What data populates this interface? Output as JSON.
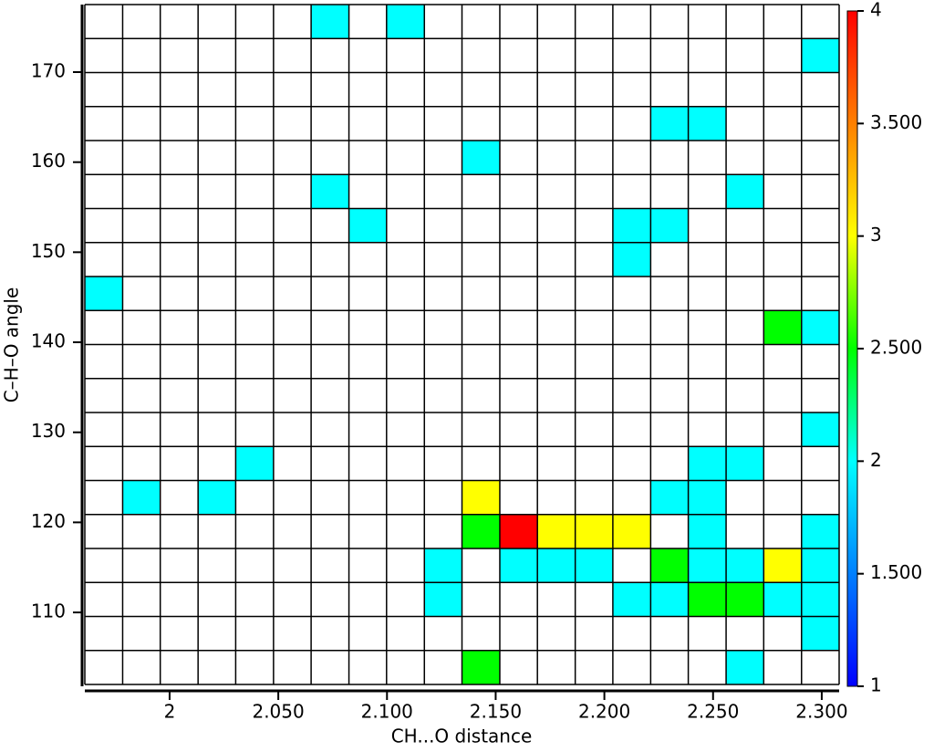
{
  "chart_data": {
    "type": "heatmap",
    "x_label": "CH...O distance",
    "y_label": "C–H–O angle",
    "xlim": [
      1.961,
      2.308
    ],
    "ylim": [
      102,
      177.5
    ],
    "x_bins": [
      1.961,
      1.9784,
      1.9957,
      2.0131,
      2.0304,
      2.0478,
      2.0651,
      2.0825,
      2.0998,
      2.1172,
      2.1345,
      2.1519,
      2.1692,
      2.1866,
      2.2039,
      2.2213,
      2.2386,
      2.256,
      2.2733,
      2.2907,
      2.308
    ],
    "y_bins": [
      102,
      105.775,
      109.55,
      113.325,
      117.1,
      120.875,
      124.65,
      128.425,
      132.2,
      135.975,
      139.75,
      143.525,
      147.3,
      151.075,
      154.85,
      158.625,
      162.4,
      166.175,
      169.95,
      173.725,
      177.5
    ],
    "xticks": [
      2,
      {
        "value": 2.05,
        "label": "2.050"
      },
      {
        "value": 2.1,
        "label": "2.100"
      },
      {
        "value": 2.15,
        "label": "2.150"
      },
      {
        "value": 2.2,
        "label": "2.200"
      },
      {
        "value": 2.25,
        "label": "2.250"
      },
      {
        "value": 2.3,
        "label": "2.300"
      }
    ],
    "yticks": [
      110,
      120,
      130,
      140,
      150,
      160,
      170
    ],
    "clim": [
      1,
      4
    ],
    "cticks": [
      1,
      {
        "value": 1.5,
        "label": "1.500"
      },
      2,
      {
        "value": 2.5,
        "label": "2.500"
      },
      3,
      {
        "value": 3.5,
        "label": "3.500"
      },
      4
    ],
    "colorscale": [
      [
        1,
        "#0000ff"
      ],
      [
        2,
        "#00ffff"
      ],
      [
        2.5,
        "#00ff00"
      ],
      [
        3,
        "#ffff00"
      ],
      [
        4,
        "#ff0000"
      ]
    ],
    "grid": true,
    "values": [
      [
        null,
        null,
        null,
        null,
        null,
        null,
        null,
        null,
        null,
        null,
        2.5,
        null,
        null,
        null,
        null,
        null,
        null,
        2,
        null,
        null
      ],
      [
        null,
        null,
        null,
        null,
        null,
        null,
        null,
        null,
        null,
        null,
        null,
        null,
        null,
        null,
        null,
        null,
        null,
        null,
        null,
        2
      ],
      [
        null,
        null,
        null,
        null,
        null,
        null,
        null,
        null,
        null,
        2,
        null,
        null,
        null,
        null,
        2,
        2,
        2.5,
        2.5,
        2,
        2
      ],
      [
        null,
        null,
        null,
        null,
        null,
        null,
        null,
        null,
        null,
        2,
        null,
        2,
        2,
        2,
        null,
        2.5,
        2,
        2,
        3,
        2
      ],
      [
        null,
        null,
        null,
        null,
        null,
        null,
        null,
        null,
        null,
        null,
        2.5,
        4,
        3,
        3,
        3,
        null,
        2,
        null,
        null,
        2
      ],
      [
        null,
        2,
        null,
        2,
        null,
        null,
        null,
        null,
        null,
        null,
        3,
        null,
        null,
        null,
        null,
        2,
        2,
        null,
        null,
        null
      ],
      [
        null,
        null,
        null,
        null,
        2,
        null,
        null,
        null,
        null,
        null,
        null,
        null,
        null,
        null,
        null,
        null,
        2,
        2,
        null,
        null
      ],
      [
        null,
        null,
        null,
        null,
        null,
        null,
        null,
        null,
        null,
        null,
        null,
        null,
        null,
        null,
        null,
        null,
        null,
        null,
        null,
        2
      ],
      [
        null,
        null,
        null,
        null,
        null,
        null,
        null,
        null,
        null,
        null,
        null,
        null,
        null,
        null,
        null,
        null,
        null,
        null,
        null,
        null
      ],
      [
        null,
        null,
        null,
        null,
        null,
        null,
        null,
        null,
        null,
        null,
        null,
        null,
        null,
        null,
        null,
        null,
        null,
        null,
        null,
        null
      ],
      [
        null,
        null,
        null,
        null,
        null,
        null,
        null,
        null,
        null,
        null,
        null,
        null,
        null,
        null,
        null,
        null,
        null,
        null,
        2.5,
        2
      ],
      [
        2,
        null,
        null,
        null,
        null,
        null,
        null,
        null,
        null,
        null,
        null,
        null,
        null,
        null,
        null,
        null,
        null,
        null,
        null,
        null
      ],
      [
        null,
        null,
        null,
        null,
        null,
        null,
        null,
        null,
        null,
        null,
        null,
        null,
        null,
        null,
        2,
        null,
        null,
        null,
        null,
        null
      ],
      [
        null,
        null,
        null,
        null,
        null,
        null,
        null,
        2,
        null,
        null,
        null,
        null,
        null,
        null,
        2,
        2,
        null,
        null,
        null,
        null
      ],
      [
        null,
        null,
        null,
        null,
        null,
        null,
        2,
        null,
        null,
        null,
        null,
        null,
        null,
        null,
        null,
        null,
        null,
        2,
        null,
        null
      ],
      [
        null,
        null,
        null,
        null,
        null,
        null,
        null,
        null,
        null,
        null,
        2,
        null,
        null,
        null,
        null,
        null,
        null,
        null,
        null,
        null
      ],
      [
        null,
        null,
        null,
        null,
        null,
        null,
        null,
        null,
        null,
        null,
        null,
        null,
        null,
        null,
        null,
        2,
        2,
        null,
        null,
        null
      ],
      [
        null,
        null,
        null,
        null,
        null,
        null,
        null,
        null,
        null,
        null,
        null,
        null,
        null,
        null,
        null,
        null,
        null,
        null,
        null,
        null
      ],
      [
        null,
        null,
        null,
        null,
        null,
        null,
        null,
        null,
        null,
        null,
        null,
        null,
        null,
        null,
        null,
        null,
        null,
        null,
        null,
        2
      ],
      [
        null,
        null,
        null,
        null,
        null,
        null,
        2,
        null,
        2,
        null,
        null,
        null,
        null,
        null,
        null,
        null,
        null,
        null,
        null,
        null
      ]
    ]
  }
}
